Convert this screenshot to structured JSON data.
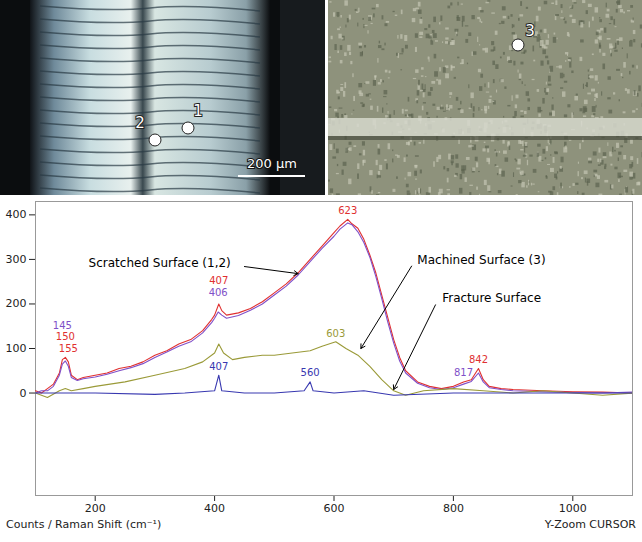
{
  "chart_data": {
    "type": "line",
    "x_label": "Counts / Raman Shift (cm⁻¹)",
    "footer": "Y-Zoom CURSOR",
    "xlim": [
      100,
      1100
    ],
    "xticks": [
      200,
      400,
      600,
      800,
      1000
    ],
    "ylim": [
      -230,
      430
    ],
    "yticks": [
      0,
      100,
      200,
      300,
      400
    ],
    "series": [
      {
        "name": "Scratched Surface (1,2)",
        "color": "#e03030",
        "x": [
          100,
          110,
          120,
          130,
          140,
          145,
          150,
          155,
          160,
          170,
          180,
          200,
          220,
          240,
          260,
          280,
          300,
          320,
          340,
          360,
          380,
          395,
          400,
          407,
          412,
          420,
          440,
          460,
          480,
          500,
          520,
          540,
          560,
          580,
          600,
          610,
          623,
          630,
          640,
          650,
          660,
          670,
          680,
          690,
          700,
          710,
          720,
          740,
          760,
          780,
          800,
          817,
          830,
          842,
          850,
          860,
          880,
          900,
          950,
          1000,
          1050,
          1100
        ],
        "values": [
          5,
          0,
          10,
          20,
          45,
          75,
          80,
          70,
          40,
          30,
          35,
          40,
          45,
          55,
          60,
          70,
          85,
          95,
          110,
          120,
          140,
          165,
          175,
          200,
          185,
          175,
          180,
          190,
          205,
          225,
          245,
          270,
          300,
          330,
          360,
          375,
          390,
          380,
          370,
          345,
          310,
          270,
          220,
          170,
          120,
          80,
          50,
          25,
          15,
          10,
          15,
          25,
          30,
          55,
          30,
          15,
          10,
          8,
          5,
          3,
          2,
          0
        ],
        "annotation": {
          "x": 308,
          "y": 292,
          "arrow_from": [
            450,
            284
          ],
          "arrow_to": [
            540,
            268
          ]
        }
      },
      {
        "name": "Scratched Surface (1,2)",
        "color": "#8050c8",
        "x": [
          100,
          110,
          120,
          130,
          140,
          145,
          150,
          155,
          160,
          170,
          180,
          200,
          220,
          240,
          260,
          280,
          300,
          320,
          340,
          360,
          380,
          395,
          400,
          406,
          412,
          420,
          440,
          460,
          480,
          500,
          520,
          540,
          560,
          580,
          600,
          610,
          623,
          630,
          640,
          650,
          660,
          670,
          680,
          690,
          700,
          710,
          720,
          740,
          760,
          780,
          800,
          817,
          830,
          842,
          850,
          860,
          880,
          900,
          950,
          1000,
          1050,
          1100
        ],
        "values": [
          0,
          5,
          5,
          15,
          40,
          65,
          72,
          60,
          35,
          28,
          32,
          36,
          42,
          50,
          57,
          66,
          80,
          92,
          105,
          115,
          135,
          158,
          168,
          182,
          175,
          168,
          174,
          186,
          200,
          220,
          240,
          265,
          295,
          325,
          352,
          368,
          382,
          378,
          362,
          338,
          305,
          262,
          212,
          160,
          112,
          72,
          45,
          22,
          12,
          8,
          12,
          20,
          26,
          45,
          25,
          12,
          8,
          5,
          3,
          1,
          0,
          2
        ]
      },
      {
        "name": "Machined Surface (3)",
        "color": "#9a9a38",
        "x": [
          100,
          120,
          140,
          150,
          160,
          180,
          200,
          250,
          300,
          350,
          380,
          400,
          407,
          415,
          430,
          450,
          480,
          500,
          530,
          560,
          580,
          603,
          620,
          640,
          660,
          680,
          700,
          720,
          750,
          800,
          850,
          900,
          950,
          1000,
          1050,
          1100
        ],
        "values": [
          0,
          -10,
          5,
          10,
          5,
          10,
          15,
          25,
          40,
          55,
          70,
          90,
          110,
          90,
          75,
          80,
          85,
          85,
          90,
          95,
          105,
          115,
          100,
          85,
          60,
          30,
          5,
          -5,
          5,
          10,
          5,
          0,
          5,
          0,
          -5,
          0
        ],
        "annotation": {
          "x": 847,
          "y": 299,
          "arrow_from": [
            730,
            285
          ],
          "arrow_to": [
            645,
            100
          ]
        }
      },
      {
        "name": "Fracture Surface",
        "color": "#3838b0",
        "x": [
          100,
          150,
          200,
          300,
          350,
          400,
          407,
          412,
          450,
          500,
          550,
          560,
          565,
          600,
          650,
          700,
          800,
          900,
          1000,
          1100
        ],
        "values": [
          0,
          0,
          0,
          -3,
          0,
          5,
          40,
          5,
          0,
          0,
          5,
          25,
          5,
          0,
          5,
          -5,
          0,
          0,
          0,
          0
        ],
        "annotation": {
          "x": 864,
          "y": 213,
          "arrow_from": [
            770,
            198
          ],
          "arrow_to": [
            700,
            8
          ]
        }
      }
    ],
    "peak_labels": [
      {
        "value": 155,
        "y": 100,
        "color": "#e03030"
      },
      {
        "value": 150,
        "y": 126,
        "color": "#e03030"
      },
      {
        "value": 145,
        "y": 152,
        "color": "#8050c8"
      },
      {
        "value": 407,
        "y": 252,
        "color": "#e03030"
      },
      {
        "value": 406,
        "y": 226,
        "color": "#8050c8"
      },
      {
        "value": 407,
        "y": 58,
        "color": "#3838b0"
      },
      {
        "value": 623,
        "y": 410,
        "color": "#e03030"
      },
      {
        "value": 603,
        "y": 132,
        "color": "#9a9a38"
      },
      {
        "value": 560,
        "y": 45,
        "color": "#3838b0"
      },
      {
        "value": 817,
        "y": 45,
        "color": "#8050c8"
      },
      {
        "value": 842,
        "y": 75,
        "color": "#e03030"
      }
    ]
  },
  "micrographs": [
    {
      "markers": [
        "2",
        "1"
      ],
      "scale_bar": "200 µm"
    },
    {
      "markers": [
        "3"
      ]
    }
  ]
}
